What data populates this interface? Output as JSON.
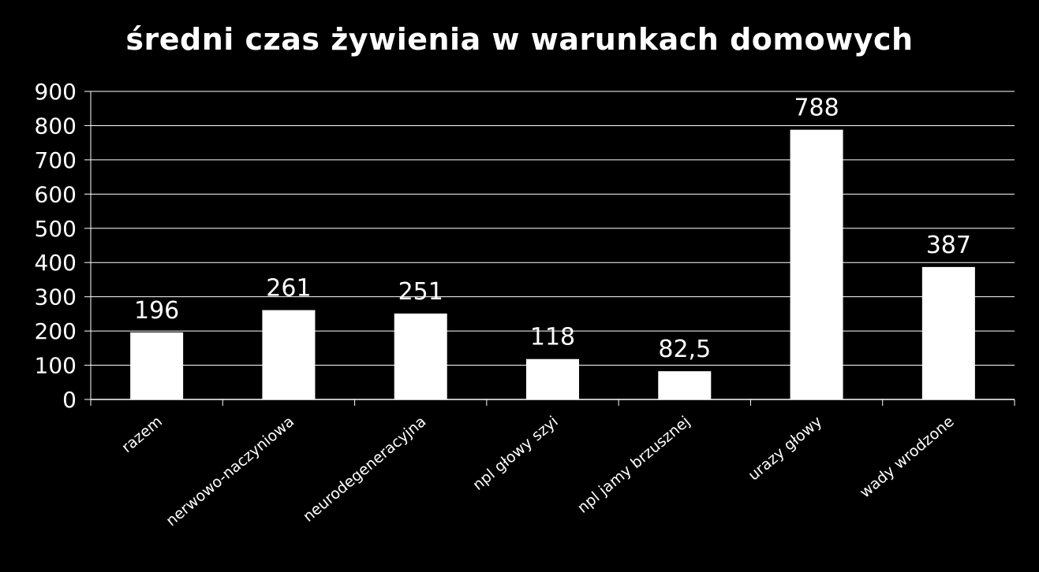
{
  "chart_data": {
    "type": "bar",
    "title": "średni czas żywienia w warunkach domowych",
    "categories": [
      "razem",
      "nerwowo-naczyniowa",
      "neurodegeneracyjna",
      "npl głowy szyi",
      "npl jamy brzusznej",
      "urazy głowy",
      "wady wrodzone"
    ],
    "values": [
      196,
      261,
      251,
      118,
      82.5,
      788,
      387
    ],
    "data_labels": [
      "196",
      "261",
      "251",
      "118",
      "82,5",
      "788",
      "387"
    ],
    "ylim": [
      0,
      900
    ],
    "yticks": [
      0,
      100,
      200,
      300,
      400,
      500,
      600,
      700,
      800,
      900
    ],
    "grid": true,
    "bar_color": "#ffffff",
    "background": "#000000"
  }
}
